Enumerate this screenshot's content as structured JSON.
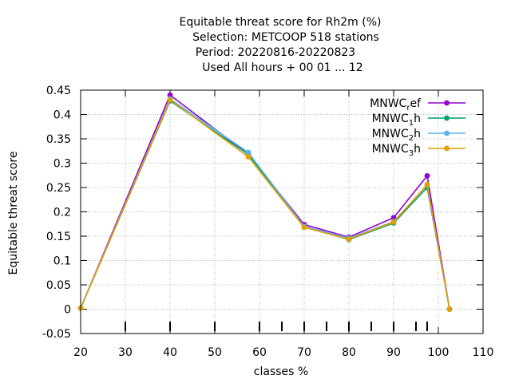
{
  "chart_data": {
    "type": "line",
    "title_lines": [
      "Equitable threat score  for Rh2m (%)",
      "Selection: METCOOP    518 stations",
      "Period: 20220816-20220823",
      "Used  All hours + 00 01 ... 12"
    ],
    "xlabel": "classes %",
    "ylabel": "Equitable threat score",
    "xlim": [
      20,
      110
    ],
    "ylim": [
      -0.05,
      0.45
    ],
    "xticks": [
      20,
      30,
      40,
      50,
      60,
      70,
      80,
      90,
      100,
      110
    ],
    "yticks": [
      -0.05,
      0,
      0.05,
      0.1,
      0.15,
      0.2,
      0.25,
      0.3,
      0.35,
      0.4,
      0.45
    ],
    "grid": true,
    "legend_position": "top-right",
    "threshold_marks": [
      30,
      40,
      50,
      60,
      65,
      70,
      75,
      80,
      85,
      90,
      95,
      97.5
    ],
    "series": [
      {
        "name": "MNWC_ref",
        "label_main": "MNWC",
        "label_sub": "r",
        "label_tail": "ef",
        "color": "#9400d3",
        "x": [
          20,
          40,
          57.5,
          70,
          80,
          90,
          97.5,
          102.5
        ],
        "y": [
          0.002,
          0.44,
          0.318,
          0.174,
          0.148,
          0.188,
          0.274,
          0.0
        ]
      },
      {
        "name": "MNWC_1h",
        "label_main": "MNWC",
        "label_sub": "1",
        "label_tail": "h",
        "color": "#009e73",
        "x": [
          20,
          40,
          57.5,
          70,
          80,
          90,
          97.5,
          102.5
        ],
        "y": [
          0.002,
          0.428,
          0.318,
          0.17,
          0.143,
          0.177,
          0.25,
          0.0
        ]
      },
      {
        "name": "MNWC_2h",
        "label_main": "MNWC",
        "label_sub": "2",
        "label_tail": "h",
        "color": "#56b4e9",
        "x": [
          20,
          40,
          57.5,
          70,
          80,
          90,
          97.5,
          102.5
        ],
        "y": [
          0.002,
          0.432,
          0.322,
          0.17,
          0.146,
          0.18,
          0.255,
          0.0
        ]
      },
      {
        "name": "MNWC_3h",
        "label_main": "MNWC",
        "label_sub": "3",
        "label_tail": "h",
        "color": "#e69f00",
        "x": [
          20,
          40,
          57.5,
          70,
          80,
          90,
          97.5,
          102.5
        ],
        "y": [
          0.002,
          0.43,
          0.313,
          0.168,
          0.144,
          0.179,
          0.256,
          0.0
        ]
      }
    ]
  }
}
